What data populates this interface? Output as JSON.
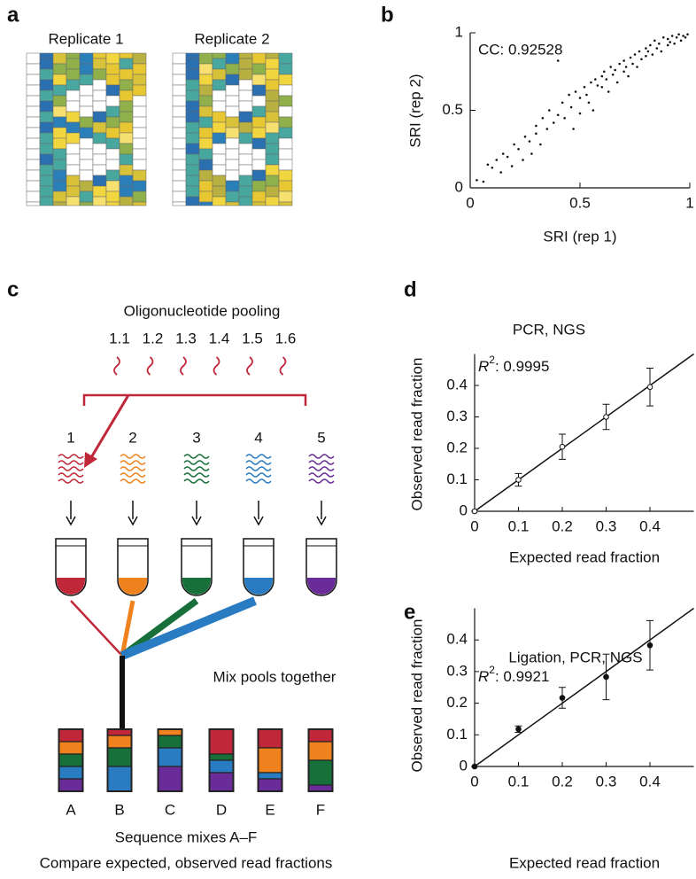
{
  "panel_labels": [
    "a",
    "b",
    "c",
    "d",
    "e"
  ],
  "panel_a": {
    "titles": [
      "Replicate 1",
      "Replicate 2"
    ]
  },
  "diagram": {
    "title": "Oligonucleotide pooling",
    "oligos": [
      "1.1",
      "1.2",
      "1.3",
      "1.4",
      "1.5",
      "1.6"
    ],
    "pools": [
      {
        "label": "1",
        "color": "#c0283a"
      },
      {
        "label": "2",
        "color": "#f0821e"
      },
      {
        "label": "3",
        "color": "#17703a"
      },
      {
        "label": "4",
        "color": "#2a7cc2"
      },
      {
        "label": "5",
        "color": "#6a2c98"
      }
    ],
    "mix_label": "Mix pools together",
    "mixes": [
      {
        "label": "A",
        "fractions": [
          0.2,
          0.2,
          0.2,
          0.2,
          0.2
        ]
      },
      {
        "label": "B",
        "fractions": [
          0.1,
          0.2,
          0.3,
          0.4,
          0
        ]
      },
      {
        "label": "C",
        "fractions": [
          0,
          0.1,
          0.2,
          0.3,
          0.4
        ]
      },
      {
        "label": "D",
        "fractions": [
          0.4,
          0,
          0.1,
          0.2,
          0.3
        ]
      },
      {
        "label": "E",
        "fractions": [
          0.3,
          0.4,
          0,
          0.1,
          0.2
        ]
      },
      {
        "label": "F",
        "fractions": [
          0.2,
          0.3,
          0.4,
          0,
          0.1
        ]
      }
    ],
    "captions": [
      "Sequence mixes A–F",
      "Compare expected, observed read fractions"
    ]
  },
  "chart_data": [
    {
      "type": "scatter",
      "xlabel": "SRI (rep 1)",
      "ylabel": "SRI (rep 2)",
      "annotation": "CC: 0.92528",
      "xlim": [
        0,
        1
      ],
      "ylim": [
        0,
        1
      ],
      "xticks": [
        0,
        0.5,
        1
      ],
      "yticks": [
        0,
        0.5,
        1
      ],
      "color": "#111",
      "x": [
        0.03,
        0.06,
        0.08,
        0.1,
        0.12,
        0.14,
        0.15,
        0.17,
        0.19,
        0.2,
        0.22,
        0.24,
        0.25,
        0.27,
        0.28,
        0.3,
        0.3,
        0.32,
        0.33,
        0.35,
        0.36,
        0.38,
        0.4,
        0.4,
        0.42,
        0.43,
        0.45,
        0.46,
        0.47,
        0.48,
        0.5,
        0.5,
        0.52,
        0.53,
        0.54,
        0.55,
        0.56,
        0.57,
        0.58,
        0.6,
        0.6,
        0.61,
        0.62,
        0.63,
        0.64,
        0.65,
        0.66,
        0.67,
        0.68,
        0.7,
        0.7,
        0.71,
        0.72,
        0.73,
        0.74,
        0.75,
        0.76,
        0.77,
        0.78,
        0.8,
        0.8,
        0.81,
        0.82,
        0.83,
        0.84,
        0.85,
        0.86,
        0.87,
        0.88,
        0.9,
        0.9,
        0.91,
        0.92,
        0.93,
        0.94,
        0.95,
        0.96,
        0.97,
        0.98,
        0.99
      ],
      "values": [
        0.05,
        0.04,
        0.15,
        0.13,
        0.18,
        0.1,
        0.22,
        0.2,
        0.14,
        0.28,
        0.25,
        0.18,
        0.33,
        0.3,
        0.22,
        0.35,
        0.4,
        0.28,
        0.45,
        0.38,
        0.5,
        0.42,
        0.47,
        0.82,
        0.55,
        0.45,
        0.6,
        0.52,
        0.38,
        0.62,
        0.58,
        0.48,
        0.65,
        0.6,
        0.55,
        0.68,
        0.5,
        0.7,
        0.66,
        0.72,
        0.65,
        0.75,
        0.7,
        0.62,
        0.78,
        0.73,
        0.76,
        0.68,
        0.8,
        0.75,
        0.82,
        0.78,
        0.72,
        0.84,
        0.8,
        0.86,
        0.78,
        0.88,
        0.83,
        0.9,
        0.85,
        0.88,
        0.92,
        0.86,
        0.95,
        0.9,
        0.93,
        0.88,
        0.97,
        0.92,
        0.96,
        0.94,
        0.98,
        0.93,
        0.97,
        0.99,
        0.95,
        0.98,
        0.97,
        0.99
      ]
    },
    {
      "type": "errorbar",
      "title": "PCR, NGS",
      "xlabel": "Expected read fraction",
      "ylabel": "Observed read fraction",
      "annotation": {
        "symbol": "R",
        "superscript": "2",
        "text": ": 0.9995"
      },
      "marker": "open",
      "color": "#111",
      "xlim": [
        0,
        0.5
      ],
      "ylim": [
        0,
        0.5
      ],
      "xticks": [
        0,
        0.1,
        0.2,
        0.3,
        0.4
      ],
      "yticks": [
        0,
        0.1,
        0.2,
        0.3,
        0.4
      ],
      "x": [
        0,
        0.1,
        0.2,
        0.3,
        0.4
      ],
      "values": [
        0,
        0.1,
        0.205,
        0.3,
        0.395
      ],
      "errors": [
        0,
        0.02,
        0.04,
        0.04,
        0.06
      ],
      "fit_line": {
        "x": [
          0,
          0.5
        ],
        "y": [
          0,
          0.5
        ]
      }
    },
    {
      "type": "errorbar",
      "title": "Ligation, PCR, NGS",
      "xlabel": "Expected read fraction",
      "ylabel": "Observed read fraction",
      "annotation": {
        "symbol": "R",
        "superscript": "2",
        "text": ": 0.9921"
      },
      "marker": "filled",
      "color": "#111",
      "xlim": [
        0,
        0.5
      ],
      "ylim": [
        0,
        0.5
      ],
      "xticks": [
        0,
        0.1,
        0.2,
        0.3,
        0.4
      ],
      "yticks": [
        0,
        0.1,
        0.2,
        0.3,
        0.4
      ],
      "x": [
        0,
        0.1,
        0.2,
        0.3,
        0.4
      ],
      "values": [
        0,
        0.118,
        0.217,
        0.283,
        0.383
      ],
      "errors": [
        0,
        0.01,
        0.033,
        0.072,
        0.078
      ],
      "fit_line": {
        "x": [
          0,
          0.5
        ],
        "y": [
          0,
          0.5
        ]
      }
    }
  ]
}
